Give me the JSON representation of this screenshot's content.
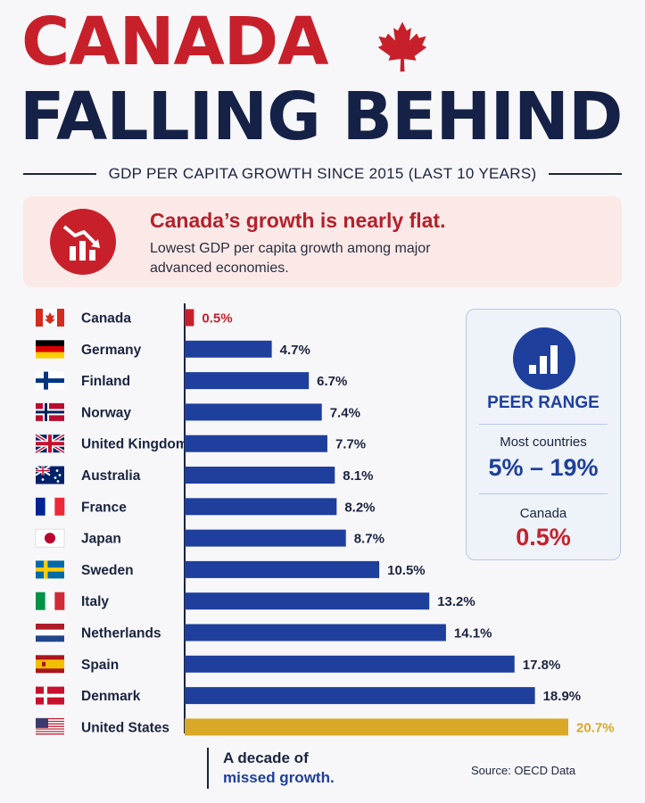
{
  "header": {
    "title_line1": "CANADA",
    "title_line2": "FALLING BEHIND",
    "subtitle": "GDP PER CAPITA GROWTH SINCE 2015 (LAST 10 YEARS)"
  },
  "callout": {
    "headline": "Canada’s growth is nearly flat.",
    "body": "Lowest GDP per capita growth among major advanced economies."
  },
  "peer_box": {
    "title": "PEER RANGE",
    "most_label": "Most countries",
    "range": "5% – 19%",
    "canada_label": "Canada",
    "canada_value": "0.5%"
  },
  "footer": {
    "line1": "A decade of",
    "line2": "missed growth.",
    "source": "Source: OECD Data"
  },
  "colors": {
    "canada": "#c8202a",
    "peer": "#1e3f9c",
    "usa": "#d9a826"
  },
  "chart_data": {
    "type": "bar",
    "orientation": "horizontal",
    "categories": [
      "Canada",
      "Germany",
      "Finland",
      "Norway",
      "United Kingdom",
      "Australia",
      "France",
      "Japan",
      "Sweden",
      "Italy",
      "Netherlands",
      "Spain",
      "Denmark",
      "United States"
    ],
    "values": [
      0.5,
      4.7,
      6.7,
      7.4,
      7.7,
      8.1,
      8.2,
      8.7,
      10.5,
      13.2,
      14.1,
      17.8,
      18.9,
      20.7
    ],
    "labels": [
      "0.5%",
      "4.7%",
      "6.7%",
      "7.4%",
      "7.7%",
      "8.1%",
      "8.2%",
      "8.7%",
      "10.5%",
      "13.2%",
      "14.1%",
      "17.8%",
      "18.9%",
      "20.7%"
    ],
    "flags": [
      "canada",
      "germany",
      "finland",
      "norway",
      "united-kingdom",
      "australia",
      "france",
      "japan",
      "sweden",
      "italy",
      "netherlands",
      "spain",
      "denmark",
      "united-states"
    ],
    "bar_colors": [
      "#c8202a",
      "#1e3f9c",
      "#1e3f9c",
      "#1e3f9c",
      "#1e3f9c",
      "#1e3f9c",
      "#1e3f9c",
      "#1e3f9c",
      "#1e3f9c",
      "#1e3f9c",
      "#1e3f9c",
      "#1e3f9c",
      "#1e3f9c",
      "#d9a826"
    ],
    "label_colors": [
      "#c8202a",
      "#1b2440",
      "#1b2440",
      "#1b2440",
      "#1b2440",
      "#1b2440",
      "#1b2440",
      "#1b2440",
      "#1b2440",
      "#1b2440",
      "#1b2440",
      "#1b2440",
      "#1b2440",
      "#d9a826"
    ],
    "xlim": [
      0,
      20.7
    ],
    "grid": false
  }
}
